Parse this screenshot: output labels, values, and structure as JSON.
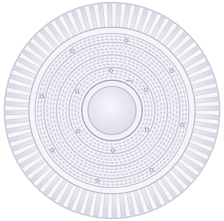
{
  "image": {
    "subject": "round-led-high-bay-light",
    "view": "bottom",
    "colors": {
      "background": "#ffffff",
      "housing": "#e9e9f1",
      "fin_light": "#f7f7fb",
      "fin_dark": "#b9b9c8",
      "panel": "#f3f3f9",
      "led_dot": "#d9d9e5",
      "ring_line": "#9a9aae",
      "center": "#e8e8f6"
    },
    "led_rings": 14,
    "fin_count": 72
  }
}
